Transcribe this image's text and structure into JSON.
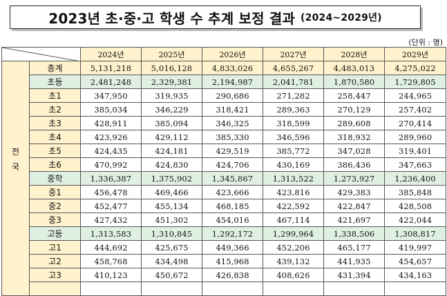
{
  "title": {
    "main": "2023년 초·중·고 학생 수 추계 보정 결과",
    "range": "(2024~2029년)"
  },
  "unit": "(단위 : 명)",
  "years": [
    "2024년",
    "2025년",
    "2026년",
    "2027년",
    "2028년",
    "2029년"
  ],
  "region": [
    "전",
    "국"
  ],
  "rows": [
    {
      "label": "총계",
      "kind": "sum",
      "values": [
        "5,131,218",
        "5,016,128",
        "4,833,026",
        "4,655,267",
        "4,483,013",
        "4,275,022"
      ]
    },
    {
      "label": "초등",
      "kind": "sub",
      "values": [
        "2,481,248",
        "2,329,381",
        "2,194,987",
        "2,041,781",
        "1,870,580",
        "1,729,805"
      ]
    },
    {
      "label": "초1",
      "kind": "row",
      "values": [
        "347,950",
        "319,935",
        "290,686",
        "271,282",
        "258,447",
        "244,965"
      ]
    },
    {
      "label": "초2",
      "kind": "row",
      "values": [
        "385,034",
        "346,229",
        "318,421",
        "289,363",
        "270,129",
        "257,402"
      ]
    },
    {
      "label": "초3",
      "kind": "row",
      "values": [
        "428,911",
        "385,094",
        "346,325",
        "318,599",
        "289,608",
        "270,414"
      ]
    },
    {
      "label": "초4",
      "kind": "row",
      "values": [
        "423,926",
        "429,112",
        "385,330",
        "346,596",
        "318,932",
        "289,960"
      ]
    },
    {
      "label": "초5",
      "kind": "row",
      "values": [
        "424,435",
        "424,181",
        "429,519",
        "385,772",
        "347,028",
        "319,401"
      ]
    },
    {
      "label": "초6",
      "kind": "row",
      "values": [
        "470,992",
        "424,830",
        "424,706",
        "430,169",
        "386,436",
        "347,663"
      ]
    },
    {
      "label": "중학",
      "kind": "sub",
      "values": [
        "1,336,387",
        "1,375,902",
        "1,345,867",
        "1,313,522",
        "1,273,927",
        "1,236,400"
      ]
    },
    {
      "label": "중1",
      "kind": "row",
      "values": [
        "456,478",
        "469,466",
        "423,666",
        "423,816",
        "429,383",
        "385,848"
      ]
    },
    {
      "label": "중2",
      "kind": "row",
      "values": [
        "452,477",
        "455,134",
        "468,185",
        "422,592",
        "422,847",
        "428,508"
      ]
    },
    {
      "label": "중3",
      "kind": "row",
      "values": [
        "427,432",
        "451,302",
        "454,016",
        "467,114",
        "421,697",
        "422,044"
      ]
    },
    {
      "label": "고등",
      "kind": "sub",
      "values": [
        "1,313,583",
        "1,310,845",
        "1,292,172",
        "1,299,964",
        "1,338,506",
        "1,308,817"
      ]
    },
    {
      "label": "고1",
      "kind": "row",
      "values": [
        "444,692",
        "425,675",
        "449,366",
        "452,206",
        "465,177",
        "419,997"
      ]
    },
    {
      "label": "고2",
      "kind": "row",
      "values": [
        "458,768",
        "434,498",
        "415,968",
        "439,132",
        "441,935",
        "454,657"
      ]
    },
    {
      "label": "고3",
      "kind": "row",
      "values": [
        "410,123",
        "450,672",
        "426,838",
        "408,626",
        "431,394",
        "434,163"
      ]
    }
  ],
  "colors": {
    "header_bg": "#fff2cc",
    "subtotal_bg": "#dff0e3",
    "border": "#555555"
  }
}
